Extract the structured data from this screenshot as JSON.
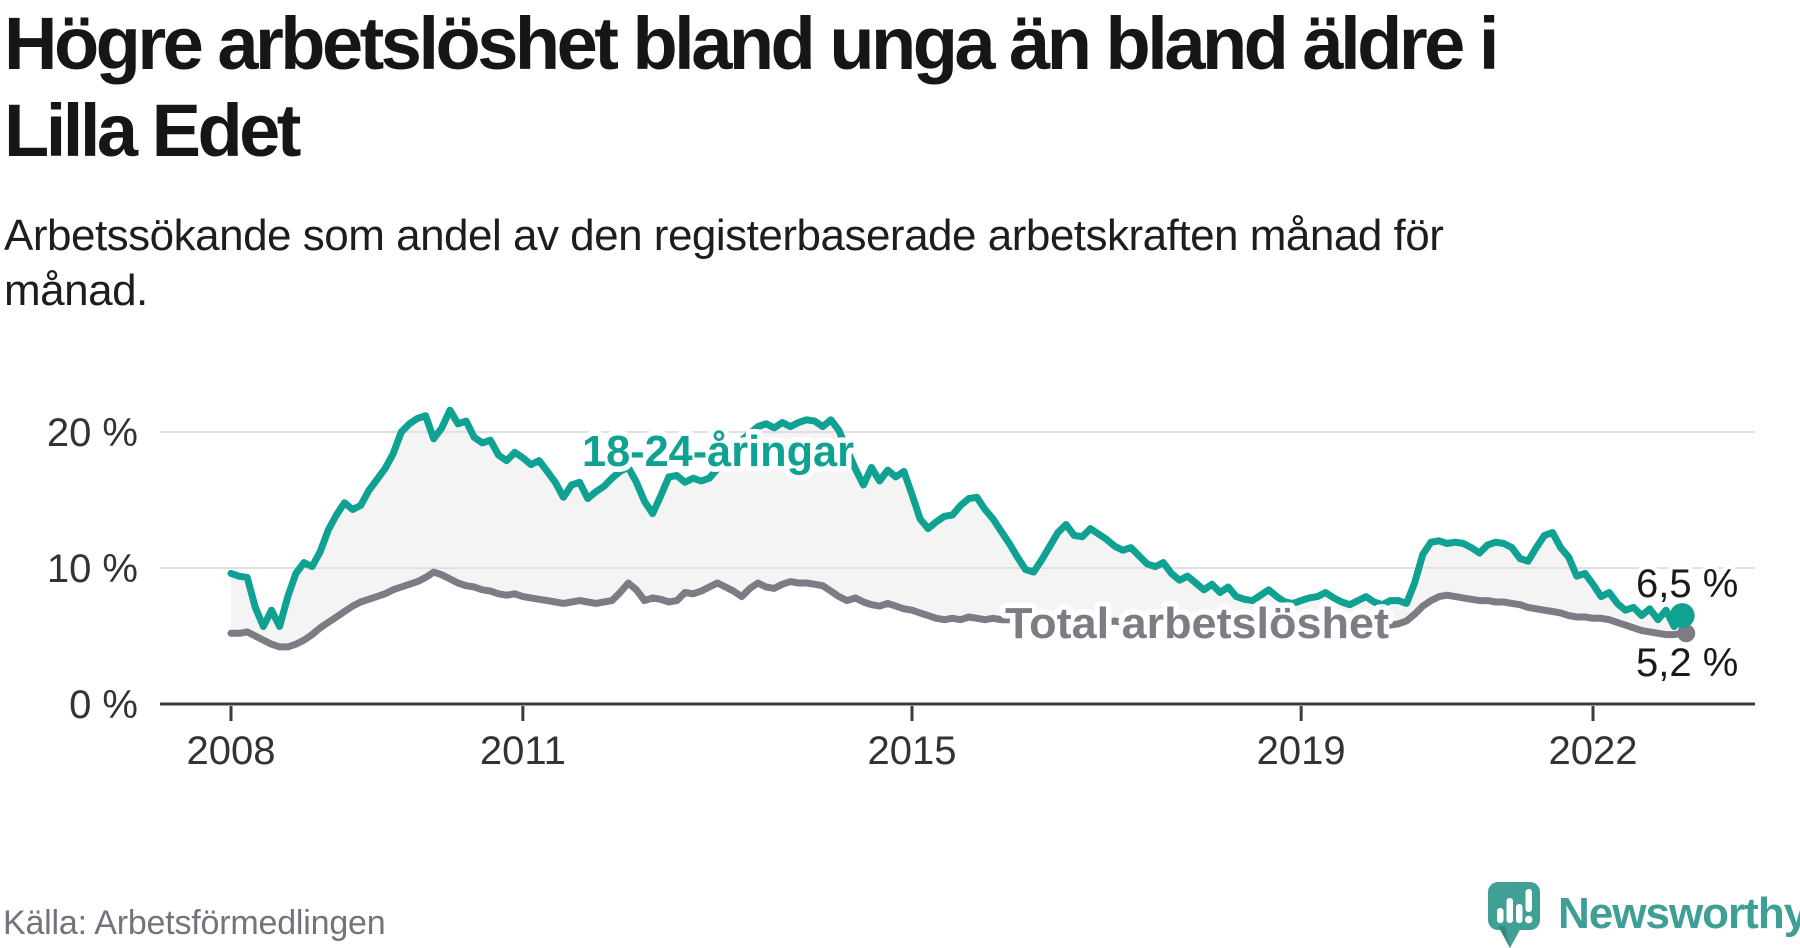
{
  "header": {
    "title": "Högre arbetslöshet bland unga än bland äldre i Lilla Edet",
    "subtitle": "Arbetssökande som andel av den registerbaserade arbetskraften månad för månad."
  },
  "footer": {
    "source": "Källa: Arbetsförmedlingen",
    "logo_text": "Newsworthy"
  },
  "colors": {
    "youth_line": "#0fa191",
    "total_line": "#7d7c84",
    "band_fill": "#f4f4f5",
    "gridline": "#e0e0e2",
    "axis": "#3c3c3c",
    "tick_label": "#333333",
    "end_label": "#1a1a1a",
    "label_halo": "#ffffff",
    "source_text": "#73737b",
    "logo_teal": "#41a096"
  },
  "chart_data": {
    "type": "line",
    "title": "Högre arbetslöshet bland unga än bland äldre i Lilla Edet",
    "subtitle": "Arbetssökande som andel av den registerbaserade arbetskraften månad för månad.",
    "source": "Källa: Arbetsförmedlingen",
    "unit": "%",
    "frequency": "monthly",
    "x_start": "2008-01",
    "x_end": "2022-12",
    "xlabel": "",
    "ylabel": "",
    "ylim": [
      0,
      23.8
    ],
    "grid": true,
    "legend_position": "inline-labels",
    "x_ticks": [
      {
        "year": 2008,
        "label": "2008"
      },
      {
        "year": 2011,
        "label": "2011"
      },
      {
        "year": 2015,
        "label": "2015"
      },
      {
        "year": 2019,
        "label": "2019"
      },
      {
        "year": 2022,
        "label": "2022"
      }
    ],
    "y_ticks": [
      {
        "value": 20,
        "label": "20 %"
      },
      {
        "value": 10,
        "label": "10 %"
      },
      {
        "value": 0,
        "label": "0 %"
      }
    ],
    "fill_between_series": true,
    "series": [
      {
        "name": "18-24-åringar",
        "color": "#0fa191",
        "end_label": "6,5 %",
        "last_value": 6.5,
        "values": [
          9.6,
          9.4,
          9.3,
          7.1,
          5.7,
          6.9,
          5.7,
          7.9,
          9.6,
          10.4,
          10.1,
          11.2,
          12.8,
          13.9,
          14.8,
          14.3,
          14.6,
          15.7,
          16.5,
          17.3,
          18.4,
          20.0,
          20.6,
          21.0,
          21.2,
          19.5,
          20.3,
          21.6,
          20.6,
          20.8,
          19.6,
          19.2,
          19.4,
          18.3,
          17.9,
          18.5,
          18.1,
          17.6,
          17.9,
          17.1,
          16.3,
          15.2,
          16.1,
          16.3,
          15.1,
          15.6,
          16.0,
          16.6,
          17.1,
          17.4,
          16.3,
          14.9,
          14.0,
          15.3,
          16.7,
          16.8,
          16.3,
          16.6,
          16.4,
          16.6,
          17.3,
          18.1,
          18.8,
          19.4,
          19.9,
          20.4,
          20.6,
          20.3,
          20.7,
          20.4,
          20.7,
          20.9,
          20.8,
          20.4,
          20.9,
          20.1,
          18.7,
          17.3,
          16.1,
          17.4,
          16.4,
          17.2,
          16.7,
          17.1,
          15.4,
          13.6,
          12.9,
          13.4,
          13.8,
          13.9,
          14.6,
          15.1,
          15.2,
          14.3,
          13.6,
          12.7,
          11.8,
          10.8,
          9.9,
          9.7,
          10.6,
          11.6,
          12.6,
          13.2,
          12.4,
          12.3,
          12.9,
          12.5,
          12.1,
          11.6,
          11.3,
          11.5,
          10.9,
          10.3,
          10.1,
          10.4,
          9.6,
          9.1,
          9.4,
          8.9,
          8.4,
          8.8,
          8.2,
          8.6,
          7.9,
          7.7,
          7.6,
          8.0,
          8.4,
          7.9,
          7.5,
          7.4,
          7.6,
          7.8,
          7.9,
          8.2,
          7.8,
          7.5,
          7.3,
          7.6,
          7.9,
          7.5,
          7.3,
          7.6,
          7.6,
          7.4,
          8.9,
          11.0,
          11.9,
          12.0,
          11.8,
          11.9,
          11.8,
          11.5,
          11.1,
          11.7,
          11.9,
          11.8,
          11.5,
          10.7,
          10.5,
          11.5,
          12.4,
          12.6,
          11.5,
          10.8,
          9.4,
          9.6,
          8.8,
          7.9,
          8.2,
          7.4,
          6.9,
          7.1,
          6.5,
          7.0,
          6.2,
          6.9,
          5.7,
          6.5
        ]
      },
      {
        "name": "Total arbetslöshet",
        "color": "#7d7c84",
        "end_label": "5,2 %",
        "last_value": 5.2,
        "values": [
          5.2,
          5.2,
          5.3,
          5.0,
          4.7,
          4.4,
          4.2,
          4.2,
          4.4,
          4.7,
          5.1,
          5.6,
          6.0,
          6.4,
          6.8,
          7.2,
          7.5,
          7.7,
          7.9,
          8.1,
          8.4,
          8.6,
          8.8,
          9.0,
          9.3,
          9.7,
          9.5,
          9.2,
          8.9,
          8.7,
          8.6,
          8.4,
          8.3,
          8.1,
          8.0,
          8.1,
          7.9,
          7.8,
          7.7,
          7.6,
          7.5,
          7.4,
          7.5,
          7.6,
          7.5,
          7.4,
          7.5,
          7.6,
          8.2,
          8.9,
          8.4,
          7.6,
          7.8,
          7.7,
          7.5,
          7.6,
          8.2,
          8.1,
          8.3,
          8.6,
          8.9,
          8.6,
          8.3,
          7.9,
          8.5,
          8.9,
          8.6,
          8.5,
          8.8,
          9.0,
          8.9,
          8.9,
          8.8,
          8.7,
          8.3,
          7.9,
          7.6,
          7.8,
          7.5,
          7.3,
          7.2,
          7.4,
          7.2,
          7.0,
          6.9,
          6.7,
          6.5,
          6.3,
          6.2,
          6.3,
          6.2,
          6.4,
          6.3,
          6.2,
          6.3,
          6.2,
          6.2,
          6.3,
          6.2,
          6.1,
          6.2,
          6.1,
          6.2,
          6.3,
          6.2,
          6.1,
          6.1,
          6.0,
          6.0,
          6.1,
          6.0,
          5.9,
          6.0,
          5.9,
          5.8,
          5.9,
          5.8,
          5.9,
          5.8,
          5.8,
          5.7,
          5.8,
          5.7,
          5.6,
          5.7,
          5.6,
          5.5,
          5.6,
          5.5,
          5.6,
          5.5,
          5.4,
          5.5,
          5.4,
          5.5,
          5.4,
          5.3,
          5.4,
          5.5,
          5.4,
          5.5,
          5.6,
          5.7,
          5.8,
          5.9,
          6.1,
          6.6,
          7.2,
          7.6,
          7.9,
          8.0,
          7.9,
          7.8,
          7.7,
          7.6,
          7.6,
          7.5,
          7.5,
          7.4,
          7.3,
          7.1,
          7.0,
          6.9,
          6.8,
          6.7,
          6.5,
          6.4,
          6.4,
          6.3,
          6.3,
          6.2,
          6.0,
          5.8,
          5.6,
          5.4,
          5.3,
          5.2,
          5.1,
          5.1,
          5.2
        ]
      }
    ]
  }
}
